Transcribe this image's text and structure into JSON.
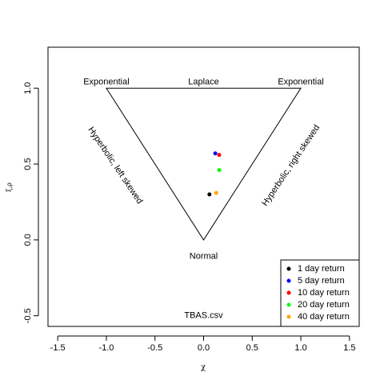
{
  "chart_data": {
    "type": "scatter",
    "title": "",
    "xlabel": "χ",
    "ylabel": "ξ,ρ",
    "xlim": [
      -1.6,
      1.6
    ],
    "ylim": [
      -0.57,
      1.27
    ],
    "x_ticks": [
      -1.5,
      -1.0,
      -0.5,
      0.0,
      0.5,
      1.0,
      1.5
    ],
    "x_tick_labels": [
      "-1.5",
      "-1.0",
      "-0.5",
      "0.0",
      "0.5",
      "1.0",
      "1.5"
    ],
    "y_ticks": [
      -0.5,
      0.0,
      0.5,
      1.0
    ],
    "y_tick_labels": [
      "-0.5",
      "0.0",
      "0.5",
      "1.0"
    ],
    "grid": false,
    "legend_position": "bottom-right",
    "reference_triangle": [
      [
        -1.0,
        1.0
      ],
      [
        1.0,
        1.0
      ],
      [
        0.0,
        0.0
      ]
    ],
    "annotations": [
      {
        "text": "Exponential",
        "x": -1.0,
        "y": 1.04,
        "rotation": 0
      },
      {
        "text": "Laplace",
        "x": 0.0,
        "y": 1.04,
        "rotation": 0
      },
      {
        "text": "Exponential",
        "x": 1.0,
        "y": 1.04,
        "rotation": 0
      },
      {
        "text": "Normal",
        "x": 0.0,
        "y": -0.11,
        "rotation": 0
      },
      {
        "text": "Hyperbolic, left skewed",
        "x": -0.91,
        "y": 0.49,
        "rotation": 56
      },
      {
        "text": "Hyperbolic, right skewed",
        "x": 0.9,
        "y": 0.49,
        "rotation": -56
      },
      {
        "text": "TBAS.csv",
        "x": 0.0,
        "y": -0.5,
        "rotation": 0
      }
    ],
    "series": [
      {
        "name": "1 day return",
        "color": "#000000",
        "x": [
          0.06
        ],
        "y": [
          0.3
        ]
      },
      {
        "name": "5 day return",
        "color": "#0000ff",
        "x": [
          0.12
        ],
        "y": [
          0.57
        ]
      },
      {
        "name": "10 day return",
        "color": "#ff0000",
        "x": [
          0.16
        ],
        "y": [
          0.56
        ]
      },
      {
        "name": "20 day return",
        "color": "#00ff00",
        "x": [
          0.16
        ],
        "y": [
          0.46
        ]
      },
      {
        "name": "40 day return",
        "color": "#ffa500",
        "x": [
          0.13
        ],
        "y": [
          0.31
        ]
      }
    ]
  }
}
